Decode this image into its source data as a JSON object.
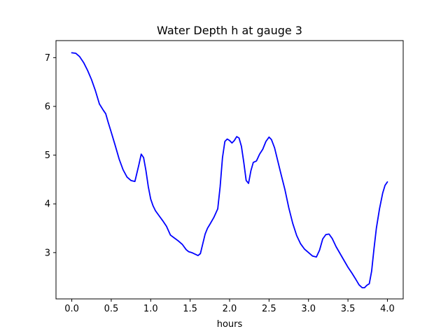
{
  "chart_data": {
    "type": "line",
    "title": "Water Depth h at gauge 3",
    "xlabel": "hours",
    "ylabel": "",
    "xlim": [
      -0.2,
      4.2
    ],
    "ylim": [
      2.05,
      7.35
    ],
    "xticks": [
      0.0,
      0.5,
      1.0,
      1.5,
      2.0,
      2.5,
      3.0,
      3.5,
      4.0
    ],
    "xtick_labels": [
      "0.0",
      "0.5",
      "1.0",
      "1.5",
      "2.0",
      "2.5",
      "3.0",
      "3.5",
      "4.0"
    ],
    "yticks": [
      3,
      4,
      5,
      6,
      7
    ],
    "ytick_labels": [
      "3",
      "4",
      "5",
      "6",
      "7"
    ],
    "grid": false,
    "series": [
      {
        "color": "#0000ff",
        "x": [
          0.0,
          0.05,
          0.1,
          0.15,
          0.2,
          0.25,
          0.3,
          0.35,
          0.4,
          0.43,
          0.46,
          0.5,
          0.55,
          0.6,
          0.65,
          0.7,
          0.75,
          0.8,
          0.85,
          0.88,
          0.91,
          0.94,
          0.97,
          1.0,
          1.03,
          1.06,
          1.1,
          1.15,
          1.2,
          1.25,
          1.3,
          1.35,
          1.4,
          1.45,
          1.48,
          1.52,
          1.56,
          1.6,
          1.63,
          1.66,
          1.69,
          1.72,
          1.75,
          1.8,
          1.85,
          1.88,
          1.91,
          1.94,
          1.97,
          2.0,
          2.03,
          2.06,
          2.09,
          2.12,
          2.15,
          2.18,
          2.21,
          2.24,
          2.27,
          2.3,
          2.34,
          2.38,
          2.42,
          2.46,
          2.5,
          2.53,
          2.57,
          2.6,
          2.65,
          2.7,
          2.75,
          2.8,
          2.85,
          2.9,
          2.95,
          3.0,
          3.05,
          3.1,
          3.14,
          3.18,
          3.22,
          3.26,
          3.3,
          3.35,
          3.4,
          3.45,
          3.5,
          3.55,
          3.6,
          3.64,
          3.68,
          3.71,
          3.74,
          3.77,
          3.8,
          3.83,
          3.86,
          3.9,
          3.94,
          3.97,
          4.0
        ],
        "y": [
          7.1,
          7.09,
          7.02,
          6.9,
          6.74,
          6.55,
          6.32,
          6.05,
          5.92,
          5.85,
          5.68,
          5.47,
          5.2,
          4.92,
          4.7,
          4.55,
          4.48,
          4.46,
          4.8,
          5.02,
          4.95,
          4.68,
          4.35,
          4.1,
          3.96,
          3.86,
          3.77,
          3.66,
          3.54,
          3.36,
          3.3,
          3.24,
          3.17,
          3.06,
          3.02,
          3.0,
          2.97,
          2.94,
          2.98,
          3.18,
          3.38,
          3.5,
          3.58,
          3.72,
          3.9,
          4.35,
          4.95,
          5.28,
          5.33,
          5.3,
          5.25,
          5.3,
          5.38,
          5.35,
          5.18,
          4.85,
          4.48,
          4.42,
          4.68,
          4.85,
          4.88,
          5.02,
          5.12,
          5.28,
          5.37,
          5.32,
          5.15,
          4.95,
          4.62,
          4.3,
          3.92,
          3.6,
          3.35,
          3.18,
          3.07,
          3.0,
          2.93,
          2.91,
          3.05,
          3.28,
          3.37,
          3.38,
          3.29,
          3.12,
          2.98,
          2.84,
          2.7,
          2.58,
          2.45,
          2.34,
          2.28,
          2.28,
          2.33,
          2.36,
          2.62,
          3.08,
          3.5,
          3.9,
          4.22,
          4.38,
          4.45
        ]
      }
    ]
  }
}
